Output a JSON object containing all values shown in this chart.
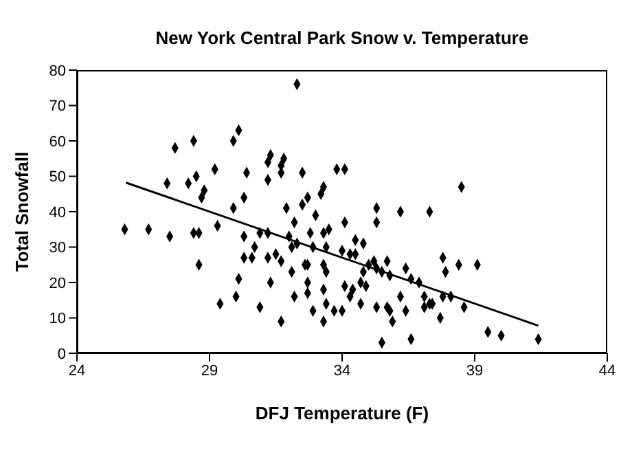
{
  "chart_data": {
    "type": "scatter",
    "title": "New York Central Park Snow v. Temperature",
    "xlabel": "DFJ Temperature (F)",
    "ylabel": "Total Snowfall",
    "xlim": [
      24,
      44
    ],
    "xticks": [
      24,
      29,
      34,
      39,
      44
    ],
    "ylim": [
      0,
      80
    ],
    "yticks": [
      0,
      10,
      20,
      30,
      40,
      50,
      60,
      70,
      80
    ],
    "series": [
      {
        "color": "#000000",
        "marker": "diamond",
        "x": [
          32.3,
          27.7,
          28.4,
          30.1,
          29.9,
          31.3,
          31.8,
          31.2,
          31.7,
          29.2,
          30.4,
          31.7,
          32.5,
          33.8,
          34.1,
          28.5,
          28.2,
          27.4,
          31.2,
          33.3,
          28.8,
          30.3,
          32.7,
          33.2,
          38.5,
          28.7,
          32.5,
          31.9,
          29.9,
          25.8,
          26.7,
          27.5,
          28.4,
          28.6,
          29.3,
          30.3,
          30.9,
          31.2,
          32.2,
          33.0,
          34.1,
          32.0,
          32.3,
          32.1,
          32.8,
          33.3,
          33.5,
          32.9,
          33.4,
          34.0,
          30.7,
          30.3,
          30.6,
          31.2,
          31.5,
          31.7,
          28.6,
          32.6,
          32.7,
          33.3,
          33.4,
          32.1,
          30.1,
          31.3,
          32.7,
          33.3,
          34.1,
          30.0,
          32.7,
          32.2,
          29.4,
          30.9,
          32.9,
          33.4,
          33.7,
          34.0,
          31.7,
          33.3,
          35.3,
          35.3,
          36.2,
          37.3,
          34.5,
          34.8,
          34.3,
          34.5,
          35.2,
          35.0,
          34.8,
          35.3,
          35.7,
          35.5,
          35.8,
          36.4,
          36.6,
          36.9,
          37.8,
          37.9,
          38.4,
          39.1,
          34.4,
          34.7,
          34.9,
          34.3,
          34.7,
          35.3,
          35.7,
          35.8,
          36.2,
          36.4,
          35.9,
          37.1,
          37.3,
          37.4,
          37.1,
          37.8,
          38.1,
          37.7,
          38.6,
          35.5,
          36.6,
          39.5,
          40.0,
          41.4
        ],
        "values": [
          76,
          58,
          60,
          63,
          60,
          56,
          55,
          54,
          53,
          52,
          51,
          51,
          51,
          52,
          52,
          50,
          48,
          48,
          49,
          47,
          46,
          44,
          44,
          45,
          47,
          44,
          42,
          41,
          41,
          35,
          35,
          33,
          34,
          34,
          36,
          33,
          34,
          34,
          37,
          39,
          37,
          33,
          31,
          30,
          34,
          34,
          35,
          30,
          30,
          29,
          30,
          27,
          27,
          27,
          28,
          26,
          25,
          25,
          25,
          25,
          23,
          23,
          21,
          20,
          20,
          18,
          19,
          16,
          17,
          16,
          14,
          13,
          12,
          14,
          12,
          12,
          9,
          9,
          41,
          37,
          40,
          40,
          32,
          31,
          28,
          28,
          26,
          25,
          23,
          24,
          26,
          23,
          22,
          24,
          21,
          20,
          27,
          23,
          25,
          25,
          18,
          20,
          19,
          16,
          14,
          13,
          13,
          12,
          16,
          12,
          9,
          13,
          14,
          14,
          16,
          16,
          16,
          10,
          13,
          3,
          4,
          6,
          5,
          4
        ]
      },
      {
        "type": "line",
        "color": "#000000",
        "marker": "none",
        "line_style": "solid",
        "x": [
          25.85,
          41.4
        ],
        "values": [
          48.2,
          7.8
        ]
      }
    ]
  }
}
